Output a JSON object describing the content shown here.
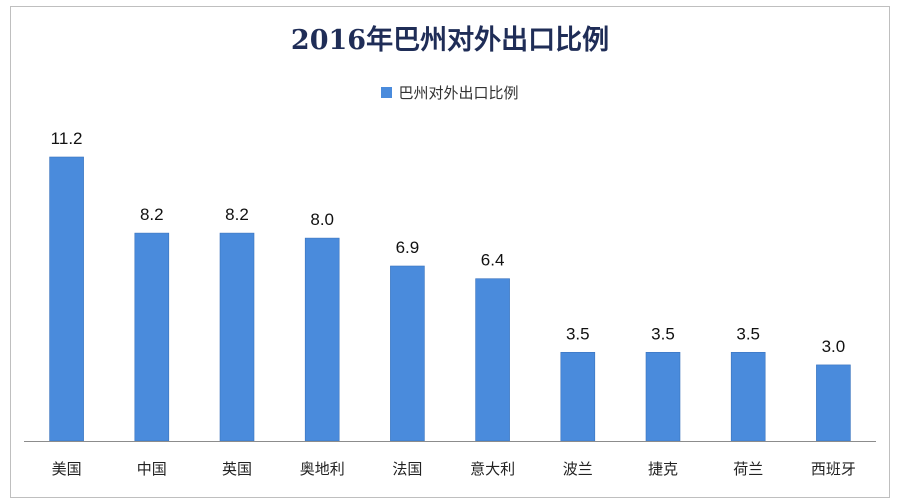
{
  "chart_data": {
    "type": "bar",
    "title": "2016年巴州对外出口比例",
    "categories": [
      "美国",
      "中国",
      "英国",
      "奥地利",
      "法国",
      "意大利",
      "波兰",
      "捷克",
      "荷兰",
      "西班牙"
    ],
    "series": [
      {
        "name": "巴州对外出口比例",
        "values": [
          11.2,
          8.2,
          8.2,
          8.0,
          6.9,
          6.4,
          3.5,
          3.5,
          3.5,
          3.0
        ],
        "color": "#4a8bdc"
      }
    ],
    "xlabel": "",
    "ylabel": "",
    "ylim": [
      0,
      11.2
    ],
    "grid": false,
    "legend_position": "top",
    "axis_color": "#8c8c8c"
  }
}
